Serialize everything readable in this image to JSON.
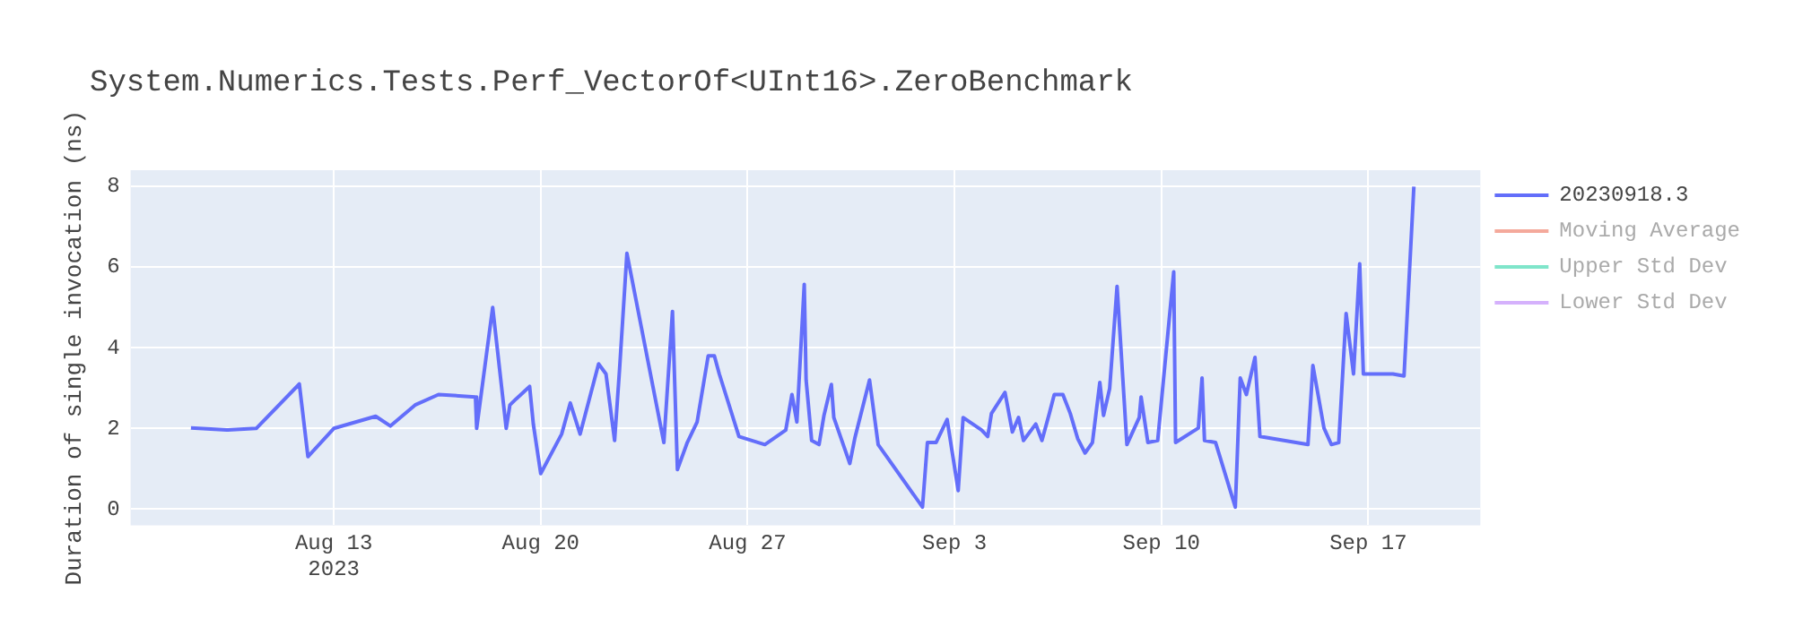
{
  "chart_data": {
    "type": "line",
    "title": "System.Numerics.Tests.Perf_VectorOf<UInt16>.ZeroBenchmark",
    "ylabel": "Duration of single invocation (ns)",
    "xlim": [
      "2023-08-06T03:00",
      "2023-09-20T19:00"
    ],
    "xticks": [
      {
        "value": "2023-08-13",
        "label": "Aug 13\n2023"
      },
      {
        "value": "2023-08-20",
        "label": "Aug 20"
      },
      {
        "value": "2023-08-27",
        "label": "Aug 27"
      },
      {
        "value": "2023-09-03",
        "label": "Sep 3"
      },
      {
        "value": "2023-09-10",
        "label": "Sep 10"
      },
      {
        "value": "2023-09-17",
        "label": "Sep 17"
      }
    ],
    "ylim": [
      -0.4,
      8.4
    ],
    "yticks": [
      0,
      2,
      4,
      6,
      8
    ],
    "grid": true,
    "legend": "top right",
    "line_style": "solid",
    "x": [
      "2023-08-08T04:00",
      "2023-08-09T09:00",
      "2023-08-10T09:00",
      "2023-08-11T20:00",
      "2023-08-12T03:00",
      "2023-08-13T00:00",
      "2023-08-14T10:00",
      "2023-08-14T22:00",
      "2023-08-15T18:00",
      "2023-08-16T13:00",
      "2023-08-17T19:00",
      "2023-08-17T20:00",
      "2023-08-18T09:00",
      "2023-08-18T20:00",
      "2023-08-18T23:00",
      "2023-08-19T04:00",
      "2023-08-19T15:00",
      "2023-08-19T18:00",
      "2023-08-20T00:00",
      "2023-08-20T17:00",
      "2023-08-21T00:00",
      "2023-08-21T08:00",
      "2023-08-21T23:00",
      "2023-08-22T05:00",
      "2023-08-22T12:00",
      "2023-08-22T16:00",
      "2023-08-22T22:00",
      "2023-08-24T04:00",
      "2023-08-24T11:00",
      "2023-08-24T15:00",
      "2023-08-24T23:00",
      "2023-08-25T07:00",
      "2023-08-25T16:00",
      "2023-08-25T21:00",
      "2023-08-26T01:00",
      "2023-08-26T17:00",
      "2023-08-27T14:00",
      "2023-08-28T07:00",
      "2023-08-28T12:00",
      "2023-08-28T16:00",
      "2023-08-28T22:00",
      "2023-08-28T23:30",
      "2023-08-29T04:00",
      "2023-08-29T10:00",
      "2023-08-29T14:00",
      "2023-08-29T20:00",
      "2023-08-29T22:00",
      "2023-08-30T11:00",
      "2023-08-30T15:00",
      "2023-08-31T03:00",
      "2023-08-31T10:00",
      "2023-09-01T22:00",
      "2023-09-02T02:00",
      "2023-09-02T09:00",
      "2023-09-02T18:00",
      "2023-09-03T03:00",
      "2023-09-03T07:00",
      "2023-09-03T22:00",
      "2023-09-04T03:00",
      "2023-09-04T06:00",
      "2023-09-04T17:00",
      "2023-09-04T23:00",
      "2023-09-05T04:00",
      "2023-09-05T08:00",
      "2023-09-05T18:00",
      "2023-09-05T23:00",
      "2023-09-06T05:00",
      "2023-09-06T09:00",
      "2023-09-06T16:00",
      "2023-09-06T22:00",
      "2023-09-07T04:00",
      "2023-09-07T10:00",
      "2023-09-07T16:00",
      "2023-09-07T22:00",
      "2023-09-08T01:00",
      "2023-09-08T06:00",
      "2023-09-08T12:00",
      "2023-09-08T20:00",
      "2023-09-09T06:00",
      "2023-09-09T07:30",
      "2023-09-09T13:00",
      "2023-09-09T21:00",
      "2023-09-10T10:00",
      "2023-09-10T11:30",
      "2023-09-11T06:00",
      "2023-09-11T09:00",
      "2023-09-11T11:00",
      "2023-09-11T20:00",
      "2023-09-12T12:00",
      "2023-09-12T16:00",
      "2023-09-12T21:00",
      "2023-09-13T04:00",
      "2023-09-13T08:00",
      "2023-09-14T23:00",
      "2023-09-15T03:00",
      "2023-09-15T12:00",
      "2023-09-15T18:00",
      "2023-09-16T00:00",
      "2023-09-16T06:00",
      "2023-09-16T12:00",
      "2023-09-16T17:00",
      "2023-09-16T20:00",
      "2023-09-17T20:00",
      "2023-09-18T05:00",
      "2023-09-18T13:00"
    ],
    "series": [
      {
        "name": "20230918.3",
        "color": "#636efa",
        "values": [
          2.01,
          1.96,
          2.0,
          3.1,
          1.3,
          2.0,
          2.3,
          2.06,
          2.58,
          2.84,
          2.78,
          2.0,
          5.0,
          2.0,
          2.58,
          2.73,
          3.04,
          2.11,
          0.88,
          1.86,
          2.63,
          1.86,
          3.6,
          3.35,
          1.7,
          3.45,
          6.34,
          1.65,
          4.9,
          0.98,
          1.65,
          2.16,
          3.8,
          3.8,
          3.35,
          1.8,
          1.6,
          1.96,
          2.84,
          2.16,
          5.57,
          3.2,
          1.7,
          1.6,
          2.32,
          3.09,
          2.27,
          1.13,
          1.75,
          3.2,
          1.6,
          0.05,
          1.65,
          1.65,
          2.22,
          0.46,
          2.27,
          1.96,
          1.8,
          2.37,
          2.89,
          1.91,
          2.27,
          1.7,
          2.11,
          1.7,
          2.37,
          2.84,
          2.84,
          2.37,
          1.75,
          1.39,
          1.65,
          3.14,
          2.32,
          2.99,
          5.52,
          1.6,
          2.27,
          2.78,
          1.65,
          1.7,
          5.88,
          1.65,
          2.01,
          3.25,
          1.7,
          1.65,
          0.05,
          3.25,
          2.84,
          3.76,
          1.8,
          1.6,
          3.56,
          2.01,
          1.6,
          1.65,
          4.85,
          3.35,
          6.08,
          3.35,
          3.35,
          3.3,
          7.99
        ]
      },
      {
        "name": "Moving Average",
        "color": "#f4a99b",
        "values": [
          null,
          null,
          null,
          null,
          null,
          null,
          null,
          null,
          null,
          null,
          null,
          null,
          null,
          null,
          null,
          null,
          null,
          null,
          null,
          null,
          null,
          null,
          null,
          null,
          null,
          null,
          null,
          null,
          null,
          null,
          null,
          null,
          null,
          null,
          null,
          null,
          null,
          null,
          null,
          null,
          null,
          null,
          null,
          null,
          null,
          null,
          null,
          null,
          null,
          null,
          null,
          null,
          null,
          null,
          null,
          null,
          null,
          null,
          null,
          null,
          null,
          null,
          null,
          null,
          null,
          null,
          null,
          null,
          null,
          null,
          null,
          null,
          null,
          null,
          null,
          null,
          null,
          null,
          null,
          null,
          null,
          null,
          null,
          null,
          null,
          null,
          null,
          null,
          null,
          null,
          null,
          null,
          null,
          null,
          null,
          null,
          null,
          null,
          null,
          null,
          null,
          null,
          null,
          null,
          null
        ]
      },
      {
        "name": "Upper Std Dev",
        "color": "#7fe5ca",
        "values": [
          null,
          null,
          null,
          null,
          null,
          null,
          null,
          null,
          null,
          null,
          null,
          null,
          null,
          null,
          null,
          null,
          null,
          null,
          null,
          null,
          null,
          null,
          null,
          null,
          null,
          null,
          null,
          null,
          null,
          null,
          null,
          null,
          null,
          null,
          null,
          null,
          null,
          null,
          null,
          null,
          null,
          null,
          null,
          null,
          null,
          null,
          null,
          null,
          null,
          null,
          null,
          null,
          null,
          null,
          null,
          null,
          null,
          null,
          null,
          null,
          null,
          null,
          null,
          null,
          null,
          null,
          null,
          null,
          null,
          null,
          null,
          null,
          null,
          null,
          null,
          null,
          null,
          null,
          null,
          null,
          null,
          null,
          null,
          null,
          null,
          null,
          null,
          null,
          null,
          null,
          null,
          null,
          null,
          null,
          null,
          null,
          null,
          null,
          null,
          null,
          null,
          null,
          null,
          null,
          null
        ]
      },
      {
        "name": "Lower Std Dev",
        "color": "#d5b1fc",
        "values": [
          null,
          null,
          null,
          null,
          null,
          null,
          null,
          null,
          null,
          null,
          null,
          null,
          null,
          null,
          null,
          null,
          null,
          null,
          null,
          null,
          null,
          null,
          null,
          null,
          null,
          null,
          null,
          null,
          null,
          null,
          null,
          null,
          null,
          null,
          null,
          null,
          null,
          null,
          null,
          null,
          null,
          null,
          null,
          null,
          null,
          null,
          null,
          null,
          null,
          null,
          null,
          null,
          null,
          null,
          null,
          null,
          null,
          null,
          null,
          null,
          null,
          null,
          null,
          null,
          null,
          null,
          null,
          null,
          null,
          null,
          null,
          null,
          null,
          null,
          null,
          null,
          null,
          null,
          null,
          null,
          null,
          null,
          null,
          null,
          null,
          null,
          null,
          null,
          null,
          null,
          null,
          null,
          null,
          null,
          null,
          null,
          null,
          null,
          null,
          null,
          null,
          null,
          null,
          null,
          null
        ]
      }
    ]
  }
}
